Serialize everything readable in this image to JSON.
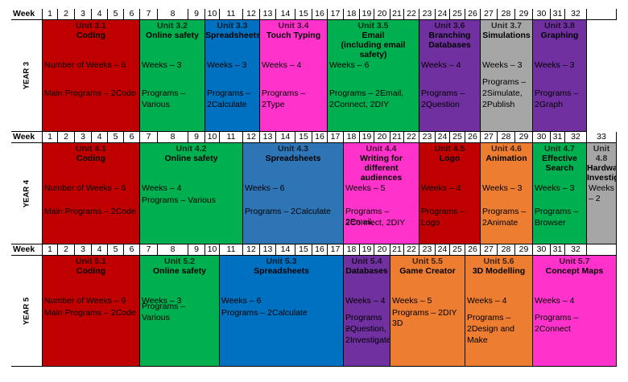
{
  "labels": {
    "week": "Week"
  },
  "colors": {
    "red": "#c00000",
    "green": "#00b050",
    "blue": "#0070c0",
    "pink": "#ff33cc",
    "purple": "#7030a0",
    "gray": "#a6a6a6",
    "orange": "#ed7d31",
    "steelblue": "#2e75b6"
  },
  "years": [
    {
      "label": "YEAR 3",
      "weeks": [
        "1",
        "2",
        "3",
        "4",
        "5",
        "6",
        "7",
        "8",
        "9",
        "10",
        "11",
        "12",
        "13",
        "14",
        "15",
        "16",
        "17",
        "18",
        "19",
        "20",
        "21",
        "22",
        "23",
        "24",
        "25",
        "26",
        "27",
        "28",
        "29",
        "30",
        "31",
        "32"
      ],
      "units": [
        {
          "unit": "Unit 3.1",
          "name": "Coding",
          "weeks": "Number of Weeks – 6",
          "programs": [
            "Main Programs – 2Code"
          ],
          "color": "red"
        },
        {
          "unit": "Unit 3.2",
          "name": "Online safety",
          "weeks": "Weeks – 3",
          "programs": [
            "Programs –",
            "Various"
          ],
          "color": "green"
        },
        {
          "unit": "Unit 3.3",
          "name": "Spreadsheets",
          "weeks": "Weeks – 3",
          "programs": [
            "Programs –",
            "2Calculate"
          ],
          "color": "blue"
        },
        {
          "unit": "Unit 3.4",
          "name": "Touch Typing",
          "weeks": "Weeks – 4",
          "programs": [
            "Programs –",
            "2Type"
          ],
          "color": "pink"
        },
        {
          "unit": "Unit 3.5",
          "name": "Email",
          "name2": "(including email safety)",
          "weeks": "Weeks – 6",
          "programs": [
            "Programs – 2Email,",
            "2Connect, 2DIY"
          ],
          "color": "green"
        },
        {
          "unit": "Unit 3.6",
          "name": "Branching",
          "name2": "Databases",
          "weeks": "Weeks – 4",
          "programs": [
            "Programs –",
            "2Question"
          ],
          "color": "purple"
        },
        {
          "unit": "Unit 3.7",
          "name": "Simulations",
          "weeks": "Weeks – 3",
          "programs": [
            "Programs –",
            "2Simulate,",
            "2Publish"
          ],
          "color": "gray"
        },
        {
          "unit": "Unit 3.8",
          "name": "Graphing",
          "weeks": "Weeks – 3",
          "programs": [
            "Programs –",
            "2Graph"
          ],
          "color": "purple"
        }
      ]
    },
    {
      "label": "YEAR 4",
      "weeks": [
        "1",
        "2",
        "3",
        "4",
        "5",
        "6",
        "7",
        "8",
        "9",
        "10",
        "11",
        "12",
        "13",
        "14",
        "15",
        "16",
        "17",
        "18",
        "19",
        "20",
        "21",
        "22",
        "23",
        "24",
        "25",
        "26",
        "27",
        "28",
        "29",
        "30",
        "31",
        "32",
        "33"
      ],
      "units": [
        {
          "unit": "Unit 4.1",
          "name": "Coding",
          "weeks": "Number of Weeks – 6",
          "programs": [
            "Main Programs – 2Code"
          ],
          "color": "red"
        },
        {
          "unit": "Unit 4.2",
          "name": "Online safety",
          "weeks": "Weeks – 4",
          "programs": [
            "Programs – Various"
          ],
          "color": "green"
        },
        {
          "unit": "Unit 4.3",
          "name": "Spreadsheets",
          "weeks": "Weeks – 6",
          "programs": [
            "Programs – 2Calculate"
          ],
          "color": "steelblue"
        },
        {
          "unit": "Unit 4.4",
          "name": "Writing for different",
          "name2": "audiences",
          "weeks": "Weeks – 5",
          "programs": [
            "Programs – 2Email,",
            "2Connect, 2DIY"
          ],
          "color": "pink"
        },
        {
          "unit": "Unit 4.5",
          "name": "Logo",
          "weeks": "Weeks – 4",
          "programs": [
            "Programs –",
            "Logo"
          ],
          "color": "red"
        },
        {
          "unit": "Unit 4.6",
          "name": "Animation",
          "weeks": "Weeks – 3",
          "programs": [
            "Programs –",
            "2Animate"
          ],
          "color": "orange"
        },
        {
          "unit": "Unit 4.7",
          "name": "Effective",
          "name2": "Search",
          "weeks": "Weeks – 3",
          "programs": [
            "Programs –",
            "Browser"
          ],
          "color": "green"
        },
        {
          "unit": "Unit 4.8",
          "name": "Hardware",
          "name2": "Investigators",
          "weeks": "Weeks – 2",
          "programs": [],
          "color": "gray"
        }
      ]
    },
    {
      "label": "YEAR 5",
      "weeks": [
        "1",
        "2",
        "3",
        "4",
        "5",
        "6",
        "7",
        "8",
        "9",
        "10",
        "11",
        "12",
        "13",
        "14",
        "15",
        "16",
        "17",
        "18",
        "19",
        "20",
        "21",
        "22",
        "23",
        "24",
        "25",
        "26",
        "27",
        "28",
        "29",
        "30",
        "31",
        "32"
      ],
      "units": [
        {
          "unit": "Unit 5.1",
          "name": "Coding",
          "weeks": "Number of Weeks – 6",
          "programs": [
            "Main Programs – 2Code"
          ],
          "color": "red"
        },
        {
          "unit": "Unit 5.2",
          "name": "Online safety",
          "weeks": "Weeks – 3",
          "programs": [
            "Programs –",
            "Various"
          ],
          "color": "green"
        },
        {
          "unit": "Unit 5.3",
          "name": "Spreadsheets",
          "weeks": "Weeks – 6",
          "programs": [
            "Programs – 2Calculate"
          ],
          "color": "blue"
        },
        {
          "unit": "Unit 5.4",
          "name": "Databases",
          "weeks": "Weeks – 4",
          "programs": [
            "Programs –",
            "2Question,",
            "2Investigate"
          ],
          "color": "purple"
        },
        {
          "unit": "Unit 5.5",
          "name": "Game Creator",
          "weeks": "Weeks – 5",
          "programs": [
            "Programs – 2DIY 3D"
          ],
          "color": "orange"
        },
        {
          "unit": "Unit 5.6",
          "name": "3D Modelling",
          "weeks": "Weeks – 4",
          "programs": [
            "Programs –",
            "2Design and",
            "Make"
          ],
          "color": "orange"
        },
        {
          "unit": "Unit 5.7",
          "name": "Concept Maps",
          "weeks": "Weeks – 4",
          "programs": [
            "Programs –",
            "2Connect"
          ],
          "color": "pink"
        }
      ]
    }
  ]
}
